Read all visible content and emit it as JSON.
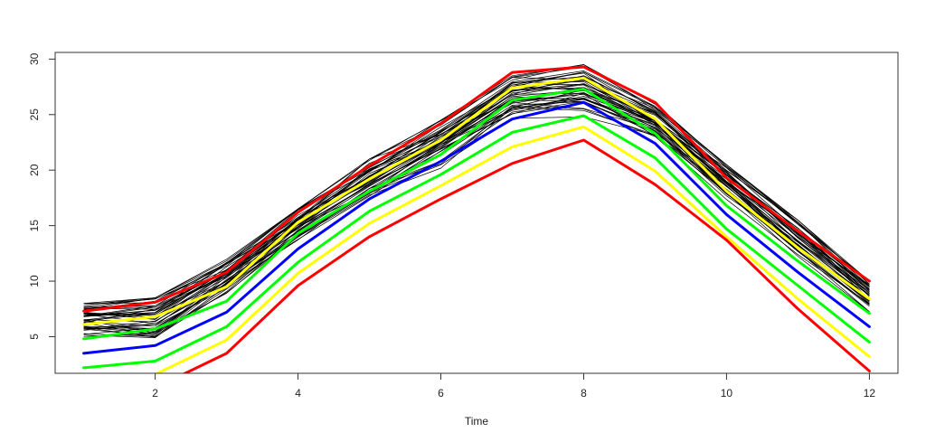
{
  "chart_data": {
    "type": "line",
    "title": "",
    "xlabel": "Time",
    "ylabel": "",
    "xlim": [
      0.6,
      12.4
    ],
    "ylim": [
      1.7,
      30.6
    ],
    "x_ticks": [
      2,
      4,
      6,
      8,
      10,
      12
    ],
    "y_ticks": [
      5,
      10,
      15,
      20,
      25,
      30
    ],
    "x_tick_labels": [
      "2",
      "4",
      "6",
      "8",
      "10",
      "12"
    ],
    "y_tick_labels": [
      "5",
      "10",
      "15",
      "20",
      "25",
      "30"
    ],
    "grid": false,
    "legend": "none",
    "x": [
      1,
      2,
      3,
      4,
      5,
      6,
      7,
      8,
      9,
      10,
      11,
      12
    ],
    "series": [
      {
        "color": "#ff0000",
        "values": [
          7.3,
          8.1,
          10.8,
          16.2,
          20.4,
          24.2,
          28.8,
          29.3,
          26.1,
          19.3,
          14.5,
          10.0
        ]
      },
      {
        "color": "#ffff00",
        "values": [
          6.1,
          6.8,
          9.5,
          15.3,
          19.2,
          22.7,
          27.4,
          28.3,
          24.6,
          18.1,
          13.0,
          8.4
        ]
      },
      {
        "color": "#00ff00",
        "values": [
          4.8,
          5.7,
          8.2,
          14.3,
          18.1,
          21.4,
          26.3,
          27.3,
          23.3,
          16.8,
          11.8,
          7.1
        ]
      },
      {
        "color": "#0000ff",
        "values": [
          3.5,
          4.2,
          7.2,
          12.9,
          17.4,
          20.8,
          24.6,
          26.1,
          22.4,
          16.0,
          10.8,
          5.9
        ]
      },
      {
        "color": "#00ff00",
        "values": [
          2.2,
          2.8,
          5.9,
          11.7,
          16.3,
          19.6,
          23.4,
          24.9,
          21.1,
          14.7,
          9.6,
          4.5
        ]
      },
      {
        "color": "#ffff00",
        "values": [
          0.9,
          1.6,
          4.7,
          10.7,
          15.2,
          18.6,
          22.1,
          23.9,
          19.9,
          14.0,
          8.4,
          3.2
        ]
      },
      {
        "color": "#ff0000",
        "values": [
          -0.3,
          0.4,
          3.5,
          9.6,
          14.0,
          17.4,
          20.6,
          22.7,
          18.7,
          13.7,
          7.5,
          1.9
        ]
      }
    ],
    "background_curves": {
      "color": "#000000",
      "count": 45,
      "values_range_by_x": [
        [
          4.0,
          8.0
        ],
        [
          3.0,
          8.5
        ],
        [
          7.5,
          12.0
        ],
        [
          12.5,
          16.5
        ],
        [
          16.0,
          21.0
        ],
        [
          19.0,
          24.5
        ],
        [
          23.5,
          28.5
        ],
        [
          23.5,
          29.5
        ],
        [
          21.5,
          26.0
        ],
        [
          16.5,
          20.5
        ],
        [
          11.0,
          15.5
        ],
        [
          6.5,
          10.0
        ]
      ]
    }
  }
}
